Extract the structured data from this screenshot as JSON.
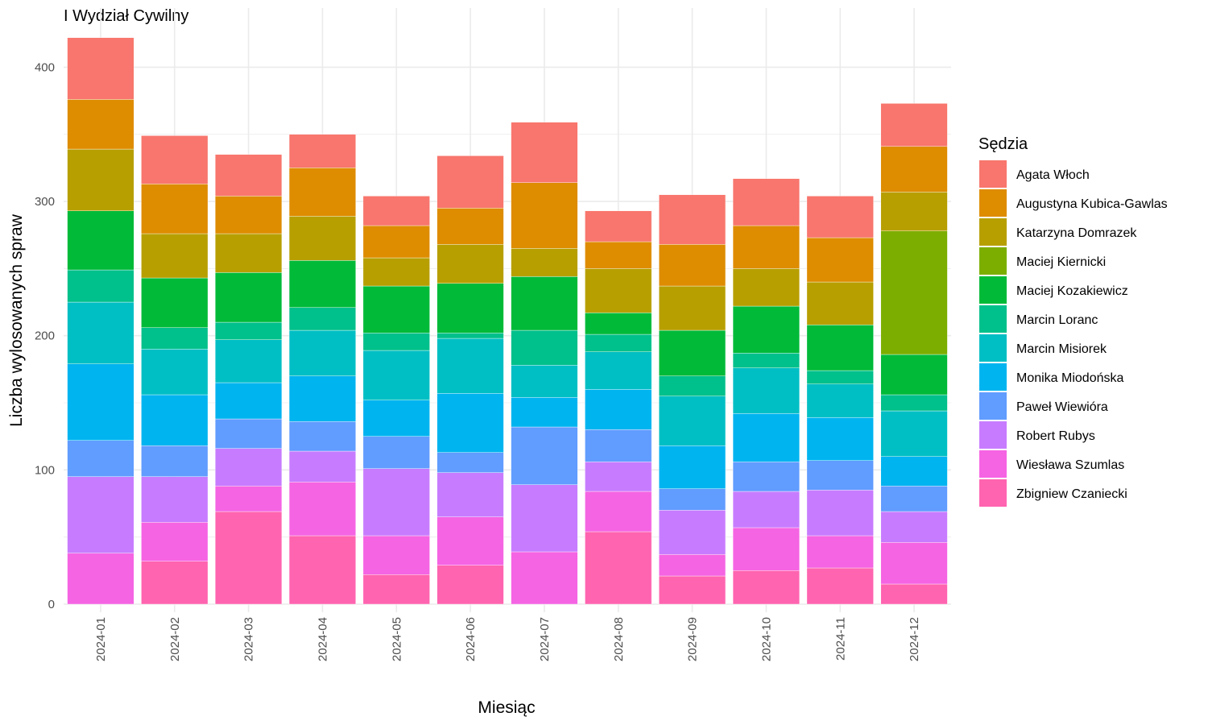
{
  "chart_data": {
    "type": "bar",
    "stacked": true,
    "title": "I Wydział Cywilny",
    "xlabel": "Miesiąc",
    "ylabel": "Liczba wylosowanych spraw",
    "ylim": [
      0,
      425
    ],
    "y_ticks": [
      0,
      100,
      200,
      300,
      400
    ],
    "grid": true,
    "legend": {
      "title": "Sędzia",
      "position": "right"
    },
    "categories": [
      "2024-01",
      "2024-02",
      "2024-03",
      "2024-04",
      "2024-05",
      "2024-06",
      "2024-07",
      "2024-08",
      "2024-09",
      "2024-10",
      "2024-11",
      "2024-12"
    ],
    "series": [
      {
        "name": "Agata Włoch",
        "color": "#F8766D",
        "values": [
          46,
          36,
          31,
          25,
          22,
          39,
          45,
          23,
          37,
          35,
          31,
          32
        ]
      },
      {
        "name": "Augustyna Kubica-Gawlas",
        "color": "#DE8C00",
        "values": [
          37,
          37,
          28,
          36,
          24,
          27,
          49,
          20,
          31,
          32,
          33,
          34
        ]
      },
      {
        "name": "Katarzyna Domrazek",
        "color": "#B79F00",
        "values": [
          46,
          33,
          29,
          33,
          21,
          29,
          21,
          33,
          33,
          28,
          32,
          29
        ]
      },
      {
        "name": "Maciej Kiernicki",
        "color": "#7CAE00",
        "values": [
          0,
          0,
          0,
          0,
          0,
          0,
          0,
          0,
          0,
          0,
          0,
          92
        ]
      },
      {
        "name": "Maciej Kozakiewicz",
        "color": "#00BA38",
        "values": [
          44,
          37,
          37,
          35,
          35,
          37,
          40,
          16,
          34,
          35,
          34,
          30
        ]
      },
      {
        "name": "Marcin Loranc",
        "color": "#00C08B",
        "values": [
          24,
          16,
          13,
          17,
          13,
          4,
          26,
          13,
          15,
          11,
          10,
          12
        ]
      },
      {
        "name": "Marcin Misiorek",
        "color": "#00BFC4",
        "values": [
          46,
          34,
          32,
          34,
          37,
          41,
          24,
          28,
          37,
          34,
          25,
          34
        ]
      },
      {
        "name": "Monika Miodońska",
        "color": "#00B4F0",
        "values": [
          57,
          38,
          27,
          34,
          27,
          44,
          22,
          30,
          32,
          36,
          32,
          22
        ]
      },
      {
        "name": "Paweł Wiewióra",
        "color": "#619CFF",
        "values": [
          27,
          23,
          22,
          22,
          24,
          15,
          43,
          24,
          16,
          22,
          22,
          19
        ]
      },
      {
        "name": "Robert Rubys",
        "color": "#C77CFF",
        "values": [
          57,
          34,
          28,
          23,
          50,
          33,
          50,
          22,
          33,
          27,
          34,
          23
        ]
      },
      {
        "name": "Wiesława Szumlas",
        "color": "#F564E3",
        "values": [
          38,
          29,
          19,
          40,
          29,
          36,
          39,
          30,
          16,
          32,
          24,
          31
        ]
      },
      {
        "name": "Zbigniew Czaniecki",
        "color": "#FF64B0",
        "values": [
          0,
          32,
          69,
          51,
          22,
          29,
          0,
          54,
          21,
          25,
          27,
          15
        ]
      }
    ]
  }
}
